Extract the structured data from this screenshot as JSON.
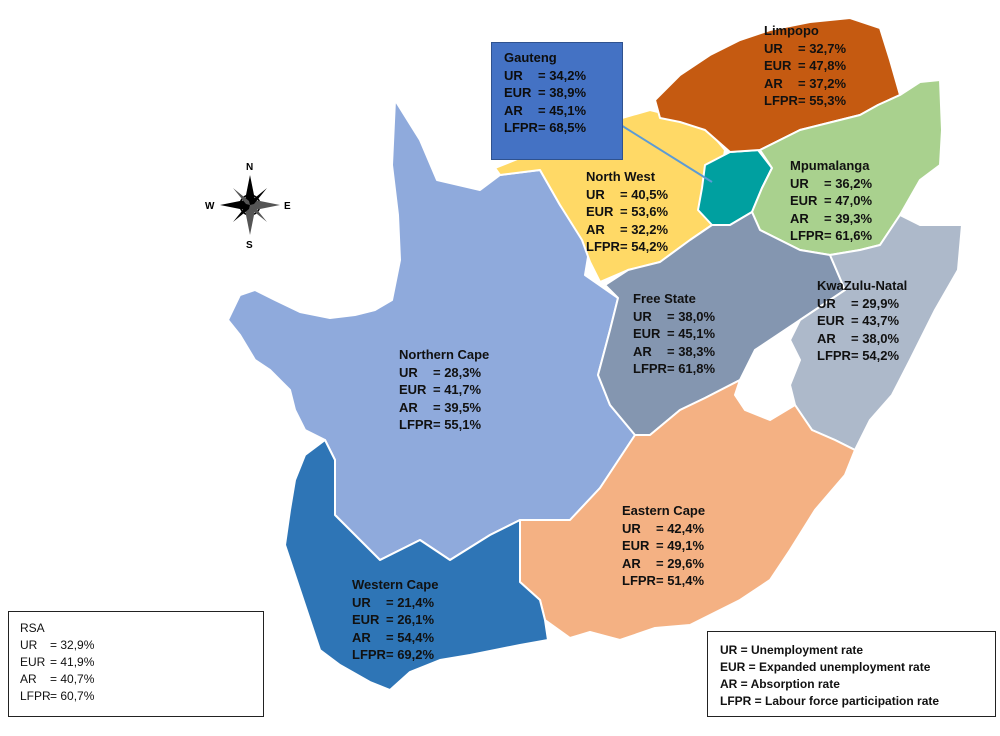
{
  "provinces": {
    "limpopo": {
      "name": "Limpopo",
      "color": "#c55a11",
      "rows": [
        {
          "k": "UR",
          "v": "= 32,7%"
        },
        {
          "k": "EUR",
          "v": "= 47,8%"
        },
        {
          "k": "AR",
          "v": "= 37,2%"
        },
        {
          "k": "LFPR",
          "v": "= 55,3%"
        }
      ]
    },
    "gauteng": {
      "name": "Gauteng",
      "color": "#00a0a0",
      "rows": [
        {
          "k": "UR",
          "v": "= 34,2%"
        },
        {
          "k": "EUR",
          "v": "= 38,9%"
        },
        {
          "k": "AR",
          "v": "= 45,1%"
        },
        {
          "k": "LFPR",
          "v": "= 68,5%"
        }
      ]
    },
    "north_west": {
      "name": "North West",
      "color": "#ffd966",
      "rows": [
        {
          "k": "UR",
          "v": "= 40,5%"
        },
        {
          "k": "EUR",
          "v": "= 53,6%"
        },
        {
          "k": "AR",
          "v": "= 32,2%"
        },
        {
          "k": "LFPR",
          "v": "= 54,2%"
        }
      ]
    },
    "mpumalanga": {
      "name": "Mpumalanga",
      "color": "#a9d18e",
      "rows": [
        {
          "k": "UR",
          "v": "= 36,2%"
        },
        {
          "k": "EUR",
          "v": "= 47,0%"
        },
        {
          "k": "AR",
          "v": "= 39,3%"
        },
        {
          "k": "LFPR",
          "v": "= 61,6%"
        }
      ]
    },
    "free_state": {
      "name": "Free State",
      "color": "#8496b0",
      "rows": [
        {
          "k": "UR",
          "v": "= 38,0%"
        },
        {
          "k": "EUR",
          "v": "= 45,1%"
        },
        {
          "k": "AR",
          "v": "= 38,3%"
        },
        {
          "k": "LFPR",
          "v": "= 61,8%"
        }
      ]
    },
    "kwazulu_natal": {
      "name": "KwaZulu-Natal",
      "color": "#adb9ca",
      "rows": [
        {
          "k": "UR",
          "v": "= 29,9%"
        },
        {
          "k": "EUR",
          "v": "= 43,7%"
        },
        {
          "k": "AR",
          "v": "= 38,0%"
        },
        {
          "k": "LFPR",
          "v": "= 54,2%"
        }
      ]
    },
    "northern_cape": {
      "name": "Northern Cape",
      "color": "#8faadc",
      "rows": [
        {
          "k": "UR",
          "v": "= 28,3%"
        },
        {
          "k": "EUR",
          "v": "= 41,7%"
        },
        {
          "k": "AR",
          "v": "= 39,5%"
        },
        {
          "k": "LFPR",
          "v": "= 55,1%"
        }
      ]
    },
    "eastern_cape": {
      "name": "Eastern Cape",
      "color": "#f4b183",
      "rows": [
        {
          "k": "UR",
          "v": "= 42,4%"
        },
        {
          "k": "EUR",
          "v": "= 49,1%"
        },
        {
          "k": "AR",
          "v": "= 29,6%"
        },
        {
          "k": "LFPR",
          "v": "= 51,4%"
        }
      ]
    },
    "western_cape": {
      "name": "Western Cape",
      "color": "#2e75b6",
      "rows": [
        {
          "k": "UR",
          "v": "= 21,4%"
        },
        {
          "k": "EUR",
          "v": "= 26,1%"
        },
        {
          "k": "AR",
          "v": "= 54,4%"
        },
        {
          "k": "LFPR",
          "v": "= 69,2%"
        }
      ]
    }
  },
  "rsa": {
    "title": "RSA",
    "rows": [
      {
        "k": "UR",
        "v": "= 32,9%"
      },
      {
        "k": "EUR",
        "v": "= 41,9%"
      },
      {
        "k": "AR",
        "v": "= 40,7%"
      },
      {
        "k": "LFPR",
        "v": "= 60,7%"
      }
    ]
  },
  "legend": {
    "rows": [
      "UR = Unemployment rate",
      "EUR = Expanded unemployment rate",
      "AR = Absorption rate",
      "LFPR = Labour force participation rate"
    ]
  },
  "compass": {
    "n": "N",
    "e": "E",
    "s": "S",
    "w": "W"
  },
  "lesotho_color": "#ffffff",
  "gauteng_box_color": "#4472c4",
  "gauteng_arrow_color": "#5b9bd5"
}
